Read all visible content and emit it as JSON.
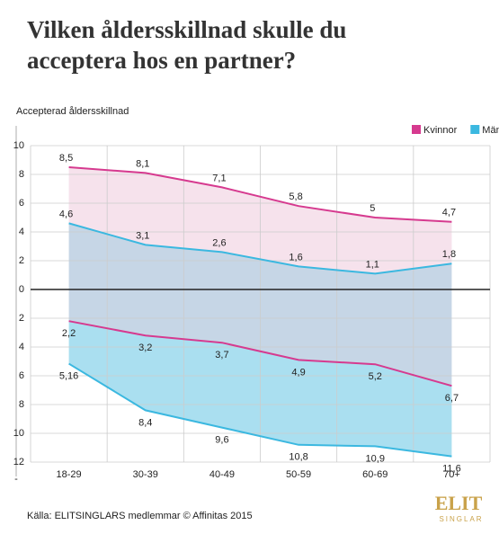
{
  "chart_data": {
    "type": "line",
    "title": "Vilken åldersskillnad skulle du acceptera hos en partner?",
    "y_label": "Accepterad åldersskillnad",
    "source": "Källa: ELITSINGLARS medlemmar © Affinitas 2015",
    "logo": {
      "name": "ELIT",
      "tagline": "SINGLAR"
    },
    "y_negative_marker": "-",
    "categories": [
      "18-29",
      "30-39",
      "40-49",
      "50-59",
      "60-69",
      "70+"
    ],
    "series": [
      {
        "name": "Kvinnor",
        "color": "#d63a8f",
        "fill": "#f6e2ec",
        "values": [
          8.5,
          8.1,
          7.1,
          5.8,
          5,
          4.7
        ],
        "value_labels": [
          "8,5",
          "8,1",
          "7,1",
          "5,8",
          "5",
          "4,7"
        ],
        "lower_values": [
          -2.2,
          -3.2,
          -3.7,
          -4.9,
          -5.2,
          -6.7
        ],
        "lower_value_labels": [
          "2,2",
          "3,2",
          "3,7",
          "4,9",
          "5,2",
          "6,7"
        ]
      },
      {
        "name": "Män",
        "color": "#3bb8e0",
        "fill": "#c6d6e6",
        "lower_fill": "#aadff0",
        "values": [
          4.6,
          3.1,
          2.6,
          1.6,
          1.1,
          1.8
        ],
        "value_labels": [
          "4,6",
          "3,1",
          "2,6",
          "1,6",
          "1,1",
          "1,8"
        ],
        "lower_values": [
          -5.16,
          -8.4,
          -9.6,
          -10.8,
          -10.9,
          -11.6
        ],
        "lower_value_labels": [
          "5,16",
          "8,4",
          "9,6",
          "10,8",
          "10,9",
          "11,6"
        ]
      }
    ],
    "ylim": [
      -12,
      10
    ],
    "yticks": [
      10,
      8,
      6,
      4,
      2,
      0,
      {
        "value": -2,
        "label": "2"
      },
      {
        "value": -4,
        "label": "4"
      },
      {
        "value": -6,
        "label": "6"
      },
      {
        "value": -8,
        "label": "8"
      },
      {
        "value": -10,
        "label": "10"
      },
      {
        "value": -12,
        "label": "12"
      }
    ],
    "grid": true,
    "legend": "top-right"
  }
}
